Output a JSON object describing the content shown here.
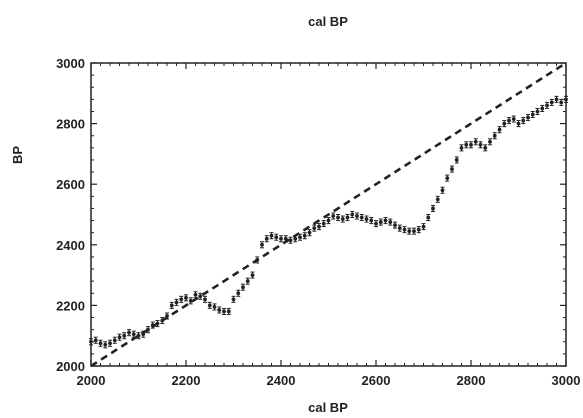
{
  "chart_data": {
    "type": "scatter",
    "title": "cal BP",
    "xlabel": "cal BP",
    "ylabel": "BP",
    "xlim": [
      2000,
      3000
    ],
    "ylim": [
      2000,
      3000
    ],
    "x_ticks": [
      "2000",
      "2200",
      "2400",
      "2600",
      "2800",
      "3000"
    ],
    "y_ticks": [
      "2000",
      "2200",
      "2400",
      "2600",
      "2800",
      "3000"
    ],
    "grid": false,
    "legend": "none",
    "reference_line": {
      "from": [
        2000,
        2000
      ],
      "to": [
        3000,
        3000
      ],
      "style": "dashed"
    },
    "series": [
      {
        "marker_color": "#222222",
        "error_bar_half_width": 10,
        "x": [
          2000,
          2010,
          2020,
          2030,
          2040,
          2050,
          2060,
          2070,
          2080,
          2090,
          2100,
          2110,
          2120,
          2130,
          2140,
          2150,
          2160,
          2170,
          2180,
          2190,
          2200,
          2210,
          2220,
          2230,
          2240,
          2250,
          2260,
          2270,
          2280,
          2290,
          2300,
          2310,
          2320,
          2330,
          2340,
          2350,
          2360,
          2370,
          2380,
          2390,
          2400,
          2410,
          2420,
          2430,
          2440,
          2450,
          2460,
          2470,
          2480,
          2490,
          2500,
          2510,
          2520,
          2530,
          2540,
          2550,
          2560,
          2570,
          2580,
          2590,
          2600,
          2610,
          2620,
          2630,
          2640,
          2650,
          2660,
          2670,
          2680,
          2690,
          2700,
          2710,
          2720,
          2730,
          2740,
          2750,
          2760,
          2770,
          2780,
          2790,
          2800,
          2810,
          2820,
          2830,
          2840,
          2850,
          2860,
          2870,
          2880,
          2890,
          2900,
          2910,
          2920,
          2930,
          2940,
          2950,
          2960,
          2970,
          2980,
          2990,
          3000
        ],
        "y": [
          2080,
          2085,
          2075,
          2070,
          2075,
          2085,
          2095,
          2100,
          2110,
          2105,
          2100,
          2105,
          2120,
          2135,
          2140,
          2150,
          2165,
          2200,
          2210,
          2220,
          2225,
          2215,
          2235,
          2230,
          2220,
          2200,
          2195,
          2185,
          2180,
          2180,
          2220,
          2240,
          2260,
          2280,
          2300,
          2350,
          2400,
          2420,
          2430,
          2425,
          2420,
          2420,
          2415,
          2420,
          2425,
          2430,
          2440,
          2455,
          2460,
          2470,
          2480,
          2495,
          2490,
          2485,
          2490,
          2500,
          2495,
          2490,
          2485,
          2480,
          2470,
          2475,
          2480,
          2475,
          2465,
          2455,
          2450,
          2445,
          2445,
          2450,
          2460,
          2490,
          2520,
          2550,
          2580,
          2620,
          2650,
          2680,
          2720,
          2730,
          2730,
          2740,
          2730,
          2720,
          2740,
          2760,
          2780,
          2800,
          2810,
          2815,
          2800,
          2810,
          2820,
          2830,
          2840,
          2850,
          2860,
          2870,
          2880,
          2870,
          2880
        ]
      }
    ]
  }
}
